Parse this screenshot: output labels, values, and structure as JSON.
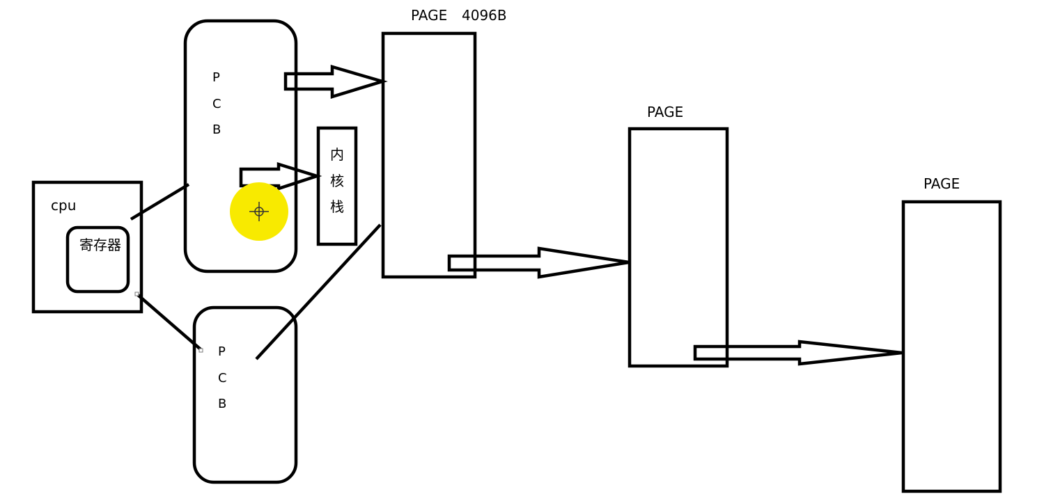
{
  "cpu": {
    "label": "cpu",
    "register_label": "寄存器"
  },
  "pcb_top": {
    "letters": [
      "P",
      "C",
      "B"
    ]
  },
  "pcb_bottom": {
    "letters": [
      "P",
      "C",
      "B"
    ]
  },
  "kernel_stack": {
    "chars": [
      "内",
      "核",
      "栈"
    ]
  },
  "pages": [
    {
      "label": "PAGE",
      "size": "4096B"
    },
    {
      "label": "PAGE"
    },
    {
      "label": "PAGE"
    }
  ],
  "cursor": {
    "icon": "crosshair-cursor-icon",
    "highlight_color": "#f8ea00"
  }
}
